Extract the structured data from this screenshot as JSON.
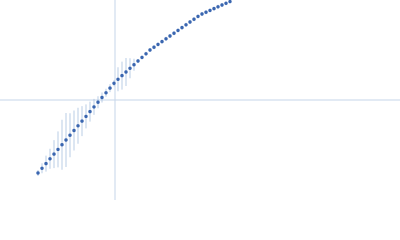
{
  "chart_data": {
    "type": "scatter",
    "x": [
      -77,
      -73,
      -69,
      -65,
      -61,
      -57,
      -53,
      -49,
      -45,
      -41,
      -37,
      -33,
      -29,
      -25,
      -21,
      -17,
      -13,
      -9,
      -5,
      -1,
      3,
      7,
      11,
      15,
      19,
      23,
      27,
      31,
      35,
      39,
      43,
      47,
      51,
      55,
      59,
      63,
      67,
      71,
      75,
      79,
      83,
      87,
      91,
      95,
      99,
      103,
      107,
      111,
      115
    ],
    "series": [
      {
        "color": "#3a66b0",
        "error_color": "#a9c0e0",
        "values": [
          -73,
          -68.3,
          -63.6,
          -58.8,
          -54.1,
          -49.4,
          -44.7,
          -40,
          -35.2,
          -30.5,
          -25.8,
          -21.1,
          -16.4,
          -11.6,
          -6.9,
          -2.2,
          2.5,
          7.2,
          11.9,
          16.7,
          20.7,
          24.4,
          28,
          31.7,
          35.3,
          39,
          42.6,
          46.2,
          50,
          52.8,
          55.6,
          58.4,
          61.2,
          64,
          66.8,
          69.6,
          72.4,
          75.2,
          78,
          80.8,
          83.6,
          86,
          87.8,
          89.6,
          91.4,
          93.2,
          95,
          96.7,
          98.5
        ],
        "errors": [
          3,
          5,
          8,
          10,
          14,
          18,
          25,
          27,
          22,
          20,
          18,
          15,
          12,
          10,
          8,
          6,
          5,
          4,
          4,
          3,
          12,
          14,
          14,
          10,
          6,
          2,
          2,
          2,
          2,
          2,
          2,
          2,
          2,
          2,
          2,
          2,
          2,
          2,
          2,
          2,
          2,
          2,
          2,
          2,
          2,
          2,
          2,
          2,
          2
        ]
      }
    ],
    "xlim": [
      -115,
      285
    ],
    "ylim": [
      -100,
      100
    ],
    "zero_lines": true,
    "zero_line_color": "#c6d6ea"
  }
}
